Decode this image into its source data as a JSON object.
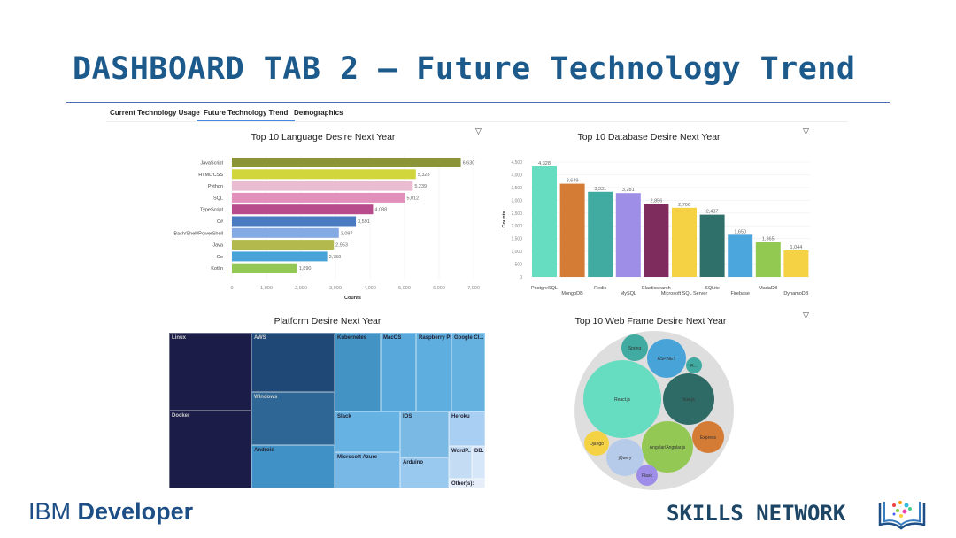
{
  "slide_title": "DASHBOARD TAB 2 – Future Technology Trend",
  "tabs": [
    "Current Technology Usage",
    "Future Technology Trend",
    "Demographics"
  ],
  "active_tab": 1,
  "icons": {
    "filter": "filter-icon"
  },
  "chart_data": [
    {
      "type": "bar",
      "orientation": "horizontal",
      "title": "Top 10 Language Desire Next Year",
      "xlabel": "Counts",
      "ylabel": "",
      "categories": [
        "JavaScript",
        "HTML/CSS",
        "Python",
        "SQL",
        "TypeScript",
        "C#",
        "Bash/Shell/PowerShell",
        "Java",
        "Go",
        "Kotlin"
      ],
      "values": [
        6630,
        5328,
        5239,
        5012,
        4088,
        3591,
        3097,
        2953,
        2759,
        1890
      ],
      "value_labels": [
        "6,630",
        "5,328",
        "5,239",
        "5,012",
        "4,088",
        "3,591",
        "3,097",
        "2,953",
        "2,759",
        "1,890"
      ],
      "colors": [
        "#8c9438",
        "#d0d63c",
        "#e9bcd2",
        "#e28fbc",
        "#b74b8c",
        "#4a7bc0",
        "#85a9e3",
        "#b3b94d",
        "#48a3d9",
        "#93c854"
      ],
      "xlim": [
        0,
        7000
      ],
      "xticks": [
        "0",
        "1,000",
        "2,000",
        "3,000",
        "4,000",
        "5,000",
        "6,000",
        "7,000"
      ]
    },
    {
      "type": "bar",
      "title": "Top 10 Database Desire Next Year",
      "xlabel": "",
      "ylabel": "Counts",
      "categories": [
        "PostgreSQL",
        "MongoDB",
        "Redis",
        "MySQL",
        "Elasticsearch",
        "Microsoft SQL Server",
        "SQLite",
        "Firebase",
        "MariaDB",
        "DynamoDB"
      ],
      "values": [
        4328,
        3649,
        3331,
        3281,
        2856,
        2706,
        2437,
        1650,
        1365,
        1044
      ],
      "value_labels": [
        "4,328",
        "3,649",
        "3,331",
        "3,281",
        "2,856",
        "2,706",
        "2,437",
        "1,650",
        "1,365",
        "1,044"
      ],
      "colors": [
        "#66dcc0",
        "#d47b35",
        "#41aba1",
        "#9f8ee8",
        "#7e2b5d",
        "#f4d244",
        "#2f706b",
        "#4aa6dc",
        "#92c951",
        "#f4d244"
      ],
      "ylim": [
        0,
        4500
      ],
      "yticks": [
        "0",
        "500",
        "1,000",
        "1,500",
        "2,000",
        "2,500",
        "3,000",
        "3,500",
        "4,000",
        "4,500"
      ]
    },
    {
      "type": "treemap",
      "title": "Platform Desire Next Year",
      "labels": [
        "Linux",
        "Docker",
        "AWS",
        "Windows",
        "Android",
        "Kubernetes",
        "MacOS",
        "Raspberry Pi",
        "Google Cl...",
        "Slack",
        "Microsoft Azure",
        "IOS",
        "Arduino",
        "Heroku",
        "WordP...",
        "DB...",
        "Other(s):"
      ]
    },
    {
      "type": "bubble",
      "title": "Top 10 Web Frame Desire Next Year",
      "labels": [
        "React.js",
        "Vue.js",
        "Angular/Angular.js",
        "ASP.NET",
        "Spring",
        "R...",
        "Express",
        "Django",
        "jQuery",
        "Flask"
      ],
      "colors": [
        "#66dcc0",
        "#2f6b66",
        "#93c854",
        "#48a3d9",
        "#41aba1",
        "#41aba1",
        "#d47b35",
        "#f4d244",
        "#b6cbea",
        "#9f8ee8"
      ]
    }
  ],
  "footer": {
    "left_brand": "IBM",
    "left_product": "Developer",
    "right_brand": "SKILLS NETWORK"
  }
}
